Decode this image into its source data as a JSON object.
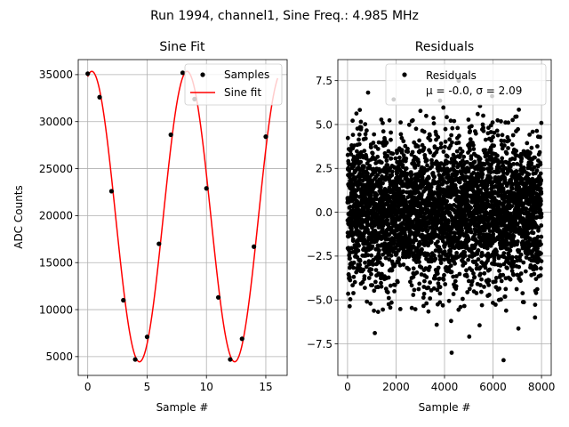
{
  "suptitle": "Run 1994, channel1, Sine Freq.: 4.985 MHz",
  "chart_data": [
    {
      "type": "scatter+line",
      "title": "Sine Fit",
      "xlabel": "Sample #",
      "ylabel": "ADC Counts",
      "xlim": [
        -0.8,
        16.8
      ],
      "ylim": [
        3000,
        36600
      ],
      "xticks": [
        0,
        5,
        10,
        15
      ],
      "yticks": [
        5000,
        10000,
        15000,
        20000,
        25000,
        30000,
        35000
      ],
      "grid": true,
      "legend_position": "upper-right",
      "series": [
        {
          "name": "Samples",
          "kind": "scatter",
          "color": "#000000",
          "x": [
            0,
            1,
            2,
            3,
            4,
            5,
            6,
            7,
            8,
            9,
            10,
            11,
            12,
            13,
            14,
            15
          ],
          "y": [
            35100,
            32600,
            22600,
            11000,
            4700,
            7100,
            17000,
            28600,
            35200,
            32400,
            22900,
            11300,
            4700,
            6900,
            16700,
            28400
          ]
        },
        {
          "name": "Sine fit",
          "kind": "line",
          "color": "#ff0000",
          "model": {
            "offset": 19900,
            "amplitude": 15450,
            "period_samples": 8.023,
            "phase_rad": 1.3
          },
          "x_range": [
            0,
            16
          ]
        }
      ]
    },
    {
      "type": "scatter",
      "title": "Residuals",
      "xlabel": "Sample #",
      "ylabel": "",
      "xlim": [
        -400,
        8400
      ],
      "ylim": [
        -9.3,
        8.7
      ],
      "xticks": [
        0,
        2000,
        4000,
        6000,
        8000
      ],
      "yticks": [
        -7.5,
        -5.0,
        -2.5,
        0.0,
        2.5,
        5.0,
        7.5
      ],
      "grid": true,
      "legend_position": "upper-right",
      "series": [
        {
          "name": "Residuals",
          "name_line2": "μ = -0.0, σ = 2.09",
          "kind": "scatter",
          "color": "#000000",
          "n_points": 8000,
          "mean": 0.0,
          "std": 2.09,
          "x_range": [
            0,
            8000
          ],
          "y_extent": [
            -8.7,
            8.7
          ]
        }
      ]
    }
  ]
}
